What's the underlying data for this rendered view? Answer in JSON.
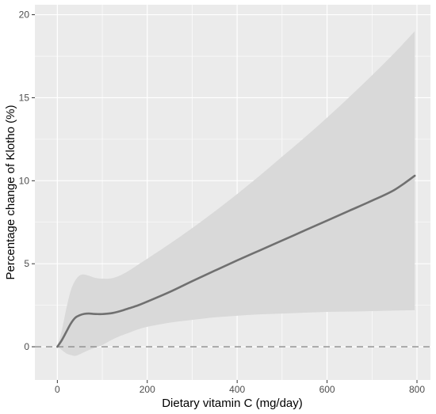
{
  "chart_data": {
    "type": "line",
    "title": "",
    "xlabel": "Dietary vitamin C (mg/day)",
    "ylabel": "Percentage change of Klotho (%)",
    "xlim": [
      -50,
      830
    ],
    "ylim": [
      -2,
      20.6
    ],
    "x_ticks": [
      0,
      200,
      400,
      600,
      800
    ],
    "y_ticks": [
      0,
      5,
      10,
      15,
      20
    ],
    "grid": true,
    "legend": "none",
    "reference_line": {
      "y": 0,
      "style": "dashed"
    },
    "colors": {
      "panel_background": "#ebebeb",
      "grid": "#ffffff",
      "line": "#707070",
      "ribbon": "#d9d9d9",
      "reference_line": "#8c8c8c"
    },
    "series": [
      {
        "x": [
          0,
          10,
          20,
          30,
          40,
          50,
          60,
          70,
          80,
          90,
          100,
          120,
          140,
          160,
          180,
          200,
          250,
          300,
          350,
          400,
          450,
          500,
          550,
          600,
          650,
          700,
          750,
          795
        ],
        "y": [
          0,
          0.4,
          0.9,
          1.4,
          1.75,
          1.9,
          1.98,
          2.0,
          1.98,
          1.97,
          1.97,
          2.02,
          2.15,
          2.32,
          2.5,
          2.72,
          3.3,
          3.95,
          4.58,
          5.2,
          5.8,
          6.4,
          7.0,
          7.6,
          8.2,
          8.8,
          9.45,
          10.3
        ],
        "ci_upper": [
          0,
          1.0,
          2.3,
          3.4,
          4.0,
          4.3,
          4.35,
          4.28,
          4.18,
          4.12,
          4.1,
          4.12,
          4.3,
          4.6,
          4.95,
          5.3,
          6.2,
          7.15,
          8.15,
          9.2,
          10.3,
          11.45,
          12.6,
          13.8,
          15.05,
          16.35,
          17.7,
          19.0
        ],
        "ci_lower": [
          0,
          -0.2,
          -0.4,
          -0.5,
          -0.55,
          -0.45,
          -0.32,
          -0.2,
          -0.1,
          0.0,
          0.1,
          0.4,
          0.65,
          0.85,
          1.05,
          1.2,
          1.45,
          1.62,
          1.77,
          1.87,
          1.95,
          2.0,
          2.05,
          2.1,
          2.12,
          2.15,
          2.18,
          2.2
        ]
      }
    ]
  }
}
